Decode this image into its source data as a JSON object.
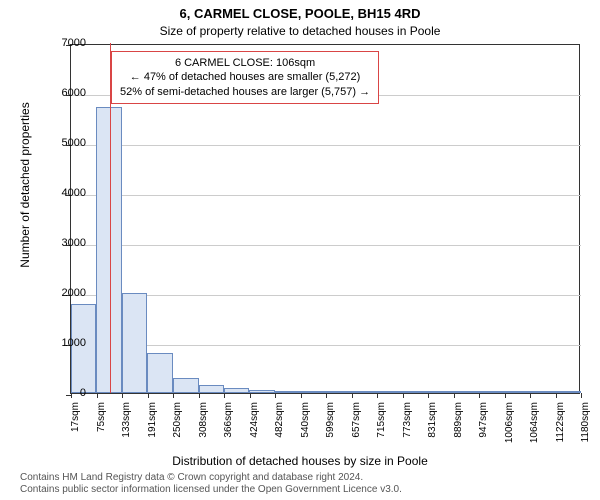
{
  "titles": {
    "main": "6, CARMEL CLOSE, POOLE, BH15 4RD",
    "sub": "Size of property relative to detached houses in Poole"
  },
  "axes": {
    "ylabel": "Number of detached properties",
    "xlabel": "Distribution of detached houses by size in Poole",
    "ylim_max": 7000,
    "ytick_step": 1000,
    "yticks": [
      0,
      1000,
      2000,
      3000,
      4000,
      5000,
      6000,
      7000
    ],
    "xticks": [
      "17sqm",
      "75sqm",
      "133sqm",
      "191sqm",
      "250sqm",
      "308sqm",
      "366sqm",
      "424sqm",
      "482sqm",
      "540sqm",
      "599sqm",
      "657sqm",
      "715sqm",
      "773sqm",
      "831sqm",
      "889sqm",
      "947sqm",
      "1006sqm",
      "1064sqm",
      "1122sqm",
      "1180sqm"
    ],
    "x_min": 17,
    "x_max": 1180
  },
  "chart": {
    "type": "histogram",
    "bar_color": "#dbe5f4",
    "bar_border": "#6a8bc0",
    "background": "#ffffff",
    "grid_color": "#cccccc",
    "bins": [
      {
        "x_start": 17,
        "x_end": 75,
        "y": 1780
      },
      {
        "x_start": 75,
        "x_end": 133,
        "y": 5730
      },
      {
        "x_start": 133,
        "x_end": 191,
        "y": 2010
      },
      {
        "x_start": 191,
        "x_end": 250,
        "y": 800
      },
      {
        "x_start": 250,
        "x_end": 308,
        "y": 310
      },
      {
        "x_start": 308,
        "x_end": 366,
        "y": 160
      },
      {
        "x_start": 366,
        "x_end": 424,
        "y": 100
      },
      {
        "x_start": 424,
        "x_end": 482,
        "y": 55
      },
      {
        "x_start": 482,
        "x_end": 540,
        "y": 40
      },
      {
        "x_start": 540,
        "x_end": 599,
        "y": 30
      },
      {
        "x_start": 599,
        "x_end": 657,
        "y": 25
      },
      {
        "x_start": 657,
        "x_end": 715,
        "y": 15
      },
      {
        "x_start": 715,
        "x_end": 773,
        "y": 5
      },
      {
        "x_start": 773,
        "x_end": 831,
        "y": 3
      },
      {
        "x_start": 831,
        "x_end": 889,
        "y": 2
      },
      {
        "x_start": 889,
        "x_end": 947,
        "y": 2
      },
      {
        "x_start": 947,
        "x_end": 1006,
        "y": 1
      },
      {
        "x_start": 1006,
        "x_end": 1064,
        "y": 1
      },
      {
        "x_start": 1064,
        "x_end": 1122,
        "y": 1
      },
      {
        "x_start": 1122,
        "x_end": 1180,
        "y": 1
      }
    ]
  },
  "marker": {
    "value_sqm": 106,
    "color": "#d94545"
  },
  "infobox": {
    "line1": "6 CARMEL CLOSE: 106sqm",
    "line2": "← 47% of detached houses are smaller (5,272)",
    "line3": "52% of semi-detached houses are larger (5,757) →",
    "border_color": "#d94545"
  },
  "footnote": {
    "line1": "Contains HM Land Registry data © Crown copyright and database right 2024.",
    "line2": "Contains public sector information licensed under the Open Government Licence v3.0."
  }
}
